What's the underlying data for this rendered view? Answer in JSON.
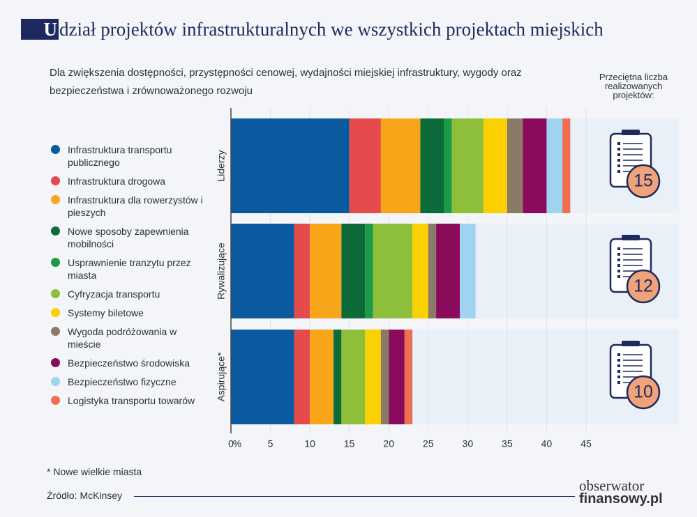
{
  "title_initial": "U",
  "title_rest": "dział projektów infrastrukturalnych we wszystkich projektach miejskich",
  "subtitle": "Dla zwiększenia dostępności, przystępności cenowej, wydajności miejskiej infrastruktury, wygody oraz bezpieczeństwa i zrównoważonego rozwoju",
  "chart_data": {
    "type": "stacked_barh",
    "categories": [
      "Liderzy",
      "Rywalizujące",
      "Aspirujące*"
    ],
    "series": [
      {
        "name": "Infrastruktura transportu publicznego",
        "color": "#0b5aa0",
        "values": [
          15,
          8,
          8
        ]
      },
      {
        "name": "Infrastruktura drogowa",
        "color": "#e64b4b",
        "values": [
          4,
          2,
          2
        ]
      },
      {
        "name": "Infrastruktura dla rowerzystów i pieszych",
        "color": "#f9a51a",
        "values": [
          5,
          4,
          3
        ]
      },
      {
        "name": "Nowe sposoby zapewnienia mobilności",
        "color": "#0d6b3a",
        "values": [
          3,
          3,
          1
        ]
      },
      {
        "name": "Usprawnienie tranzytu przez miasta",
        "color": "#1c9a48",
        "values": [
          1,
          1,
          0
        ]
      },
      {
        "name": "Cyfryzacja transportu",
        "color": "#8dbf3a",
        "values": [
          4,
          5,
          3
        ]
      },
      {
        "name": "Systemy biletowe",
        "color": "#fbd000",
        "values": [
          3,
          2,
          2
        ]
      },
      {
        "name": "Wygoda podróżowania w mieście",
        "color": "#8c7a68",
        "values": [
          2,
          1,
          1
        ]
      },
      {
        "name": "Bezpieczeństwo środowiska",
        "color": "#8b0a5b",
        "values": [
          3,
          3,
          2
        ]
      },
      {
        "name": "Bezpieczeństwo fizyczne",
        "color": "#9fd3ef",
        "values": [
          2,
          2,
          0
        ]
      },
      {
        "name": "Logistyka transportu towarów",
        "color": "#ee6f52",
        "values": [
          1,
          0,
          1
        ]
      }
    ],
    "xlim": [
      0,
      45
    ],
    "xticks": [
      0,
      5,
      10,
      15,
      20,
      25,
      30,
      35,
      40,
      45
    ],
    "x_unit": "%",
    "grid": true
  },
  "avg_projects_label": "Przeciętna liczba realizowanych projektów:",
  "avg_projects": [
    15,
    12,
    10
  ],
  "footnote": "* Nowe wielkie miasta",
  "source": "Źródło: McKinsey",
  "logo_top": "obserwator",
  "logo_bottom": "finansowy.pl"
}
